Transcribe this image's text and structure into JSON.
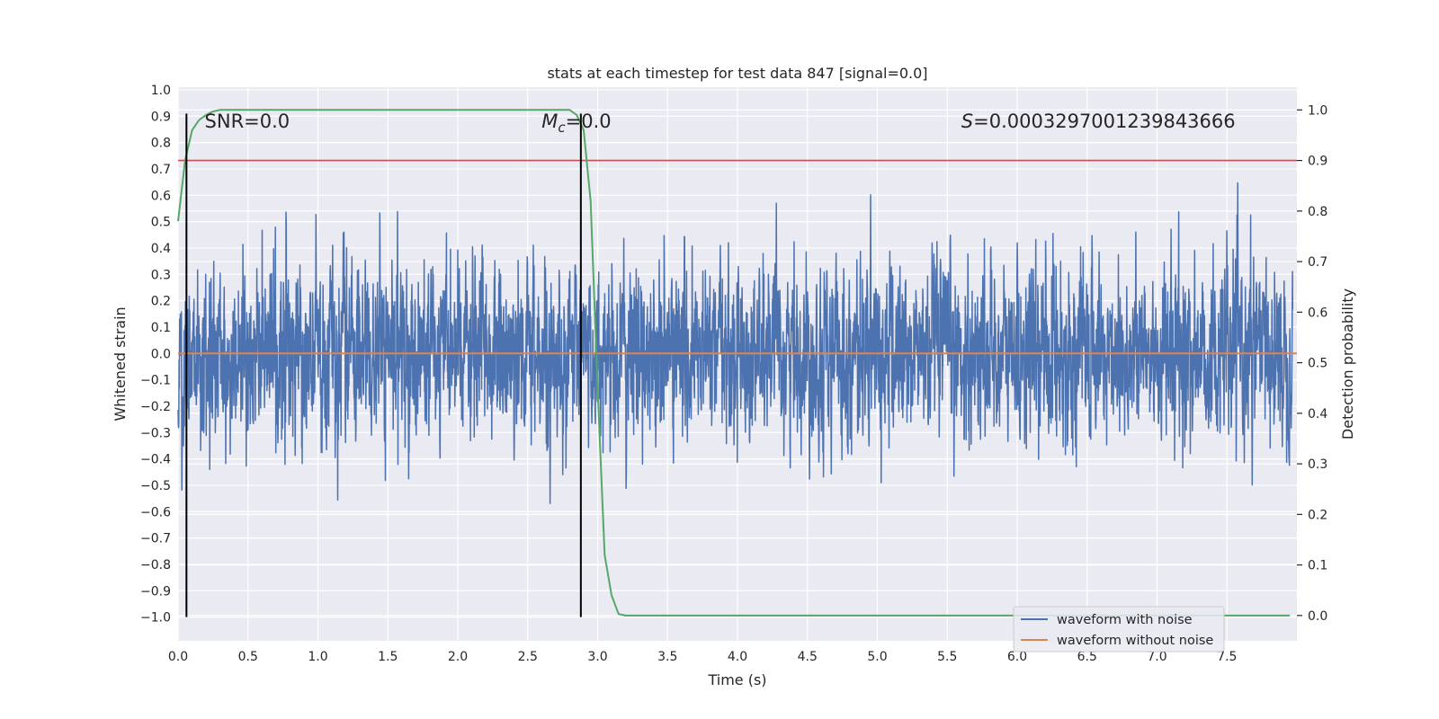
{
  "chart_data": {
    "type": "line",
    "title": "stats at each timestep for test data 847 [signal=0.0]",
    "xlabel": "Time (s)",
    "ylabel": "Whitened strain",
    "ylabel_right": "Detection probability",
    "xlim": [
      0.0,
      8.0
    ],
    "ylim": [
      -1.09,
      1.01
    ],
    "ylim_right": [
      -0.05,
      1.045
    ],
    "x_ticks": [
      0.0,
      0.5,
      1.0,
      1.5,
      2.0,
      2.5,
      3.0,
      3.5,
      4.0,
      4.5,
      5.0,
      5.5,
      6.0,
      6.5,
      7.0,
      7.5
    ],
    "x_tick_labels": [
      "0.0",
      "0.5",
      "1.0",
      "1.5",
      "2.0",
      "2.5",
      "3.0",
      "3.5",
      "4.0",
      "4.5",
      "5.0",
      "5.5",
      "6.0",
      "6.5",
      "7.0",
      "7.5"
    ],
    "y_ticks": [
      1.0,
      0.9,
      0.8,
      0.7,
      0.6,
      0.5,
      0.4,
      0.3,
      0.2,
      0.1,
      0.0,
      -0.1,
      -0.2,
      -0.3,
      -0.4,
      -0.5,
      -0.6,
      -0.7,
      -0.8,
      -0.9,
      -1.0
    ],
    "y_tick_labels": [
      "1.0",
      "0.9",
      "0.8",
      "0.7",
      "0.6",
      "0.5",
      "0.4",
      "0.3",
      "0.2",
      "0.1",
      "0.0",
      "−0.1",
      "−0.2",
      "−0.3",
      "−0.4",
      "−0.5",
      "−0.6",
      "−0.7",
      "−0.8",
      "−0.9",
      "−1.0"
    ],
    "y_right_ticks": [
      1.0,
      0.9,
      0.8,
      0.7,
      0.6,
      0.5,
      0.4,
      0.3,
      0.2,
      0.1,
      0.0
    ],
    "y_right_tick_labels": [
      "1.0",
      "0.9",
      "0.8",
      "0.7",
      "0.6",
      "0.5",
      "0.4",
      "0.3",
      "0.2",
      "0.1",
      "0.0"
    ],
    "grid": true,
    "legend_position": "lower-right",
    "series": [
      {
        "name": "waveform with noise",
        "color": "#4c72b0",
        "axis": "left",
        "kind": "noise",
        "x_range": [
          0.0,
          7.97
        ],
        "amplitude_range": [
          -1.0,
          0.91
        ],
        "description_values": {
          "typical_abs": 0.3,
          "max": 0.91,
          "min": -0.98
        }
      },
      {
        "name": "waveform without noise",
        "color": "#dd8452",
        "axis": "left",
        "x": [
          0.0,
          8.0
        ],
        "y": [
          0.0,
          0.0
        ]
      },
      {
        "color": "#55a868",
        "axis": "right",
        "x": [
          0.0,
          0.05,
          0.1,
          0.15,
          0.2,
          0.25,
          0.3,
          0.35,
          0.4,
          0.5,
          1.0,
          2.0,
          2.7,
          2.8,
          2.85,
          2.9,
          2.95,
          3.0,
          3.05,
          3.1,
          3.15,
          3.2,
          3.3,
          4.0,
          5.0,
          6.0,
          7.0,
          7.95
        ],
        "y": [
          0.78,
          0.9,
          0.96,
          0.98,
          0.99,
          0.997,
          1.0,
          1.0,
          1.0,
          1.0,
          1.0,
          1.0,
          1.0,
          1.0,
          0.99,
          0.96,
          0.82,
          0.45,
          0.12,
          0.04,
          0.003,
          0.0,
          0.0,
          0.0,
          0.0,
          0.0,
          0.0,
          0.0
        ]
      }
    ],
    "threshold_line": {
      "axis": "right",
      "y": 0.9,
      "color": "#c44e52"
    },
    "vertical_markers": [
      {
        "x": 0.06,
        "y_range": [
          -1.0,
          0.91
        ],
        "color": "#000000"
      },
      {
        "x": 2.88,
        "y_range": [
          -1.0,
          0.91
        ],
        "color": "#000000"
      }
    ],
    "annotations": [
      {
        "id": "snr",
        "text": "SNR=0.0",
        "x": 0.19,
        "y": 0.88
      },
      {
        "id": "mc",
        "prefix": "M",
        "subscript": "c",
        "text": "=0.0",
        "x": 2.6,
        "y": 0.88
      },
      {
        "id": "s",
        "prefix": "S",
        "text": "=0.0003297001239843666",
        "x": 5.6,
        "y": 0.88
      }
    ],
    "legend": [
      {
        "label": "waveform with noise",
        "color": "#4c72b0"
      },
      {
        "label": "waveform without noise",
        "color": "#dd8452"
      }
    ],
    "colors": {
      "plot_bg": "#eaeaf2",
      "grid": "#ffffff"
    }
  }
}
